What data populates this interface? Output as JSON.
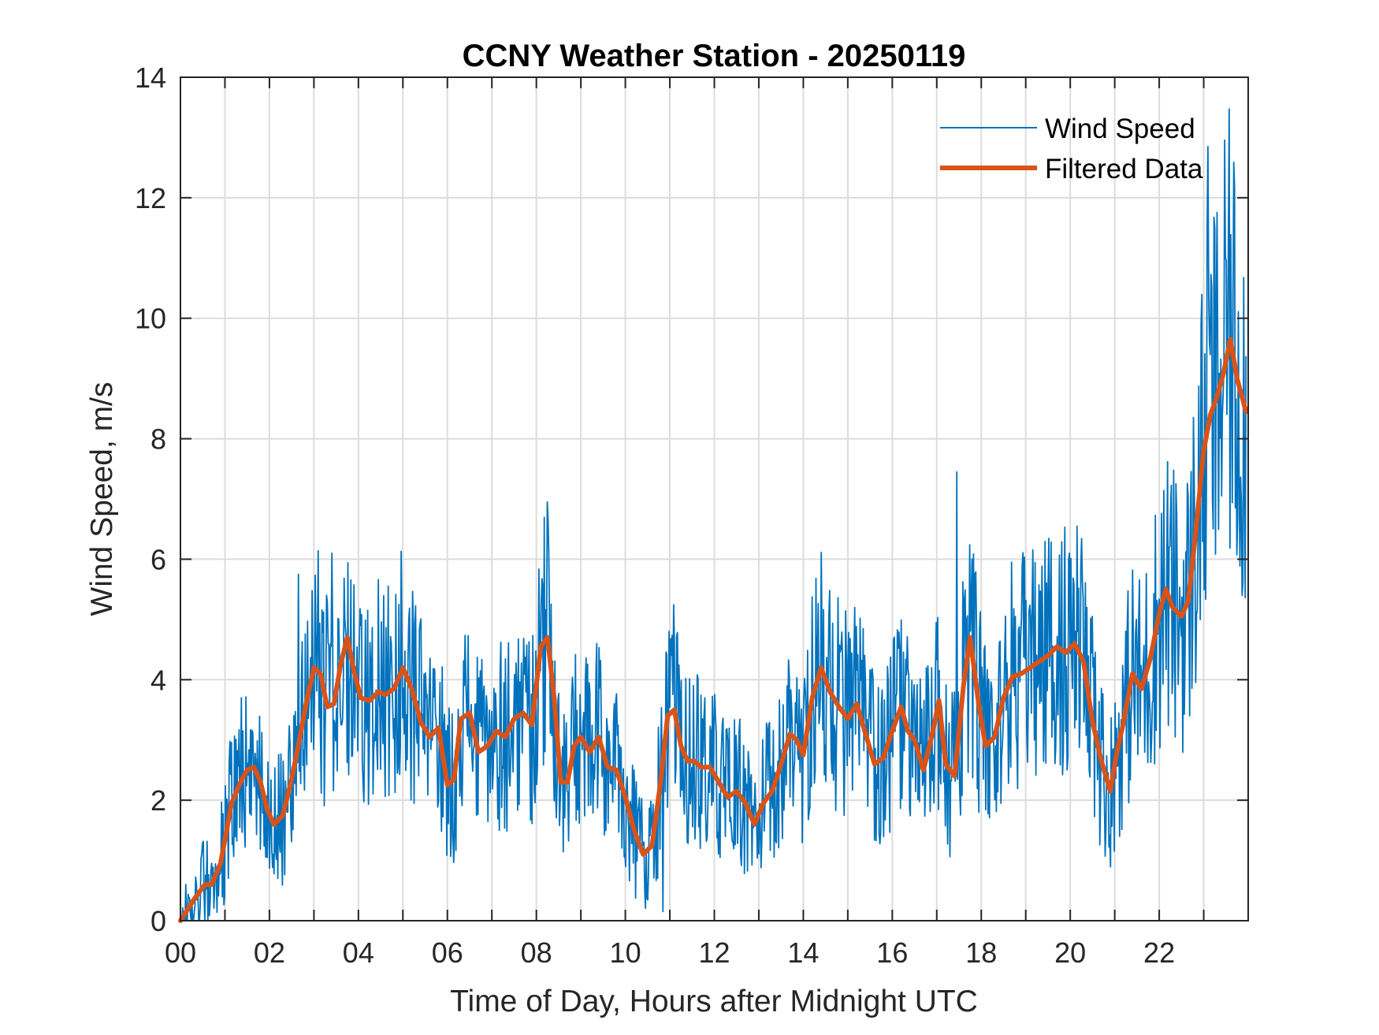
{
  "chart_data": {
    "type": "line",
    "title": "CCNY Weather Station - 20250119",
    "xlabel": "Time of Day, Hours after Midnight UTC",
    "ylabel": "Wind Speed, m/s",
    "xlim": [
      0,
      24
    ],
    "ylim": [
      0,
      14
    ],
    "grid": true,
    "legend_position": "top-right",
    "x_ticks": [
      0,
      2,
      4,
      6,
      8,
      10,
      12,
      14,
      16,
      18,
      20,
      22
    ],
    "x_tick_labels": [
      "00",
      "02",
      "04",
      "06",
      "08",
      "10",
      "12",
      "14",
      "16",
      "18",
      "20",
      "22"
    ],
    "x_minor_gridlines_every_hours": 1,
    "y_ticks": [
      0,
      2,
      4,
      6,
      8,
      10,
      12,
      14
    ],
    "y_tick_labels": [
      "0",
      "2",
      "4",
      "6",
      "8",
      "10",
      "12",
      "14"
    ],
    "series": [
      {
        "name": "Wind Speed",
        "color": "#0072BD",
        "style": "thin",
        "description": "Raw high-frequency wind speed; noisy around the filtered curve, roughly ±1.5 m/s, peaks ~6.9 at 08:20, ~7.4 at 17:25, ~12.8 at 23:10",
        "notable_points": [
          {
            "x": 0.0,
            "y": 0.0
          },
          {
            "x": 2.65,
            "y": 5.75
          },
          {
            "x": 3.4,
            "y": 6.1
          },
          {
            "x": 8.25,
            "y": 6.95
          },
          {
            "x": 10.85,
            "y": 0.15
          },
          {
            "x": 17.45,
            "y": 7.45
          },
          {
            "x": 23.1,
            "y": 12.85
          },
          {
            "x": 23.55,
            "y": 11.65
          }
        ]
      },
      {
        "name": "Filtered Data",
        "color": "#D95319",
        "style": "thick",
        "x": [
          0.0,
          0.3,
          0.55,
          0.7,
          0.9,
          1.0,
          1.15,
          1.35,
          1.5,
          1.65,
          1.8,
          1.95,
          2.1,
          2.3,
          2.5,
          2.7,
          2.85,
          3.0,
          3.15,
          3.3,
          3.45,
          3.6,
          3.75,
          3.9,
          4.05,
          4.25,
          4.45,
          4.6,
          4.8,
          5.0,
          5.2,
          5.4,
          5.6,
          5.8,
          6.0,
          6.15,
          6.3,
          6.5,
          6.7,
          6.9,
          7.1,
          7.3,
          7.5,
          7.7,
          7.9,
          8.1,
          8.25,
          8.4,
          8.55,
          8.7,
          8.85,
          9.0,
          9.2,
          9.4,
          9.6,
          9.8,
          10.0,
          10.2,
          10.4,
          10.6,
          10.8,
          10.95,
          11.1,
          11.25,
          11.4,
          11.55,
          11.7,
          11.9,
          12.1,
          12.3,
          12.5,
          12.7,
          12.9,
          13.1,
          13.3,
          13.5,
          13.7,
          13.85,
          14.0,
          14.2,
          14.4,
          14.6,
          14.8,
          15.0,
          15.2,
          15.4,
          15.6,
          15.8,
          16.0,
          16.2,
          16.35,
          16.5,
          16.7,
          16.9,
          17.05,
          17.2,
          17.4,
          17.6,
          17.75,
          17.95,
          18.1,
          18.3,
          18.5,
          18.7,
          18.9,
          19.1,
          19.3,
          19.5,
          19.7,
          19.9,
          20.1,
          20.3,
          20.5,
          20.7,
          20.9,
          21.05,
          21.2,
          21.4,
          21.6,
          21.8,
          22.0,
          22.15,
          22.3,
          22.5,
          22.65,
          22.8,
          23.0,
          23.15,
          23.3,
          23.45,
          23.6,
          23.75,
          23.95
        ],
        "y": [
          0.0,
          0.35,
          0.6,
          0.6,
          0.95,
          1.35,
          1.95,
          2.3,
          2.5,
          2.55,
          2.3,
          1.85,
          1.6,
          1.75,
          2.35,
          3.1,
          3.7,
          4.2,
          4.1,
          3.55,
          3.6,
          4.25,
          4.7,
          4.15,
          3.7,
          3.65,
          3.8,
          3.75,
          3.85,
          4.2,
          3.85,
          3.3,
          3.05,
          3.2,
          2.25,
          2.35,
          3.35,
          3.45,
          2.8,
          2.9,
          3.15,
          3.05,
          3.35,
          3.45,
          3.25,
          4.55,
          4.7,
          3.7,
          2.3,
          2.3,
          2.9,
          3.05,
          2.8,
          3.05,
          2.55,
          2.5,
          2.05,
          1.5,
          1.1,
          1.25,
          2.35,
          3.4,
          3.5,
          2.9,
          2.65,
          2.65,
          2.55,
          2.55,
          2.3,
          2.05,
          2.15,
          1.95,
          1.6,
          1.95,
          2.15,
          2.6,
          3.1,
          3.0,
          2.75,
          3.7,
          4.2,
          3.8,
          3.55,
          3.35,
          3.6,
          3.1,
          2.6,
          2.7,
          3.15,
          3.55,
          3.15,
          3.0,
          2.5,
          3.1,
          3.65,
          2.6,
          2.4,
          3.9,
          4.7,
          3.55,
          2.9,
          3.05,
          3.7,
          4.05,
          4.1,
          4.2,
          4.3,
          4.4,
          4.55,
          4.45,
          4.6,
          4.3,
          3.3,
          2.65,
          2.15,
          2.8,
          3.3,
          4.1,
          3.85,
          4.35,
          5.1,
          5.5,
          5.2,
          5.05,
          5.3,
          6.3,
          7.8,
          8.4,
          8.7,
          9.1,
          9.65,
          9.0,
          8.45
        ]
      }
    ]
  }
}
